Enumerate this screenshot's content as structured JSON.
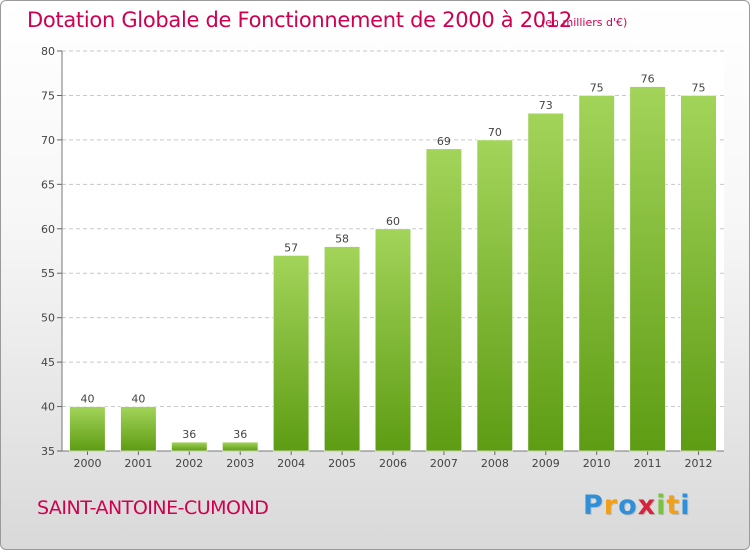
{
  "header": {
    "title": "Dotation Globale de Fonctionnement de 2000 à 2012",
    "unit": "(en milliers d'€)"
  },
  "footer": {
    "commune": "SAINT-ANTOINE-CUMOND",
    "logo_letters": [
      "P",
      "r",
      "o",
      "x",
      "i",
      "t",
      "i"
    ]
  },
  "colors": {
    "title": "#d0004f",
    "bar_top": "#a3d45a",
    "bar_bottom": "#5e9c14"
  },
  "chart_data": {
    "type": "bar",
    "title": "Dotation Globale de Fonctionnement de 2000 à 2012",
    "xlabel": "",
    "ylabel": "",
    "categories": [
      "2000",
      "2001",
      "2002",
      "2003",
      "2004",
      "2005",
      "2006",
      "2007",
      "2008",
      "2009",
      "2010",
      "2011",
      "2012"
    ],
    "values": [
      40,
      40,
      36,
      36,
      57,
      58,
      60,
      69,
      70,
      73,
      75,
      76,
      75
    ],
    "ylim": [
      35,
      80
    ],
    "yticks": [
      35,
      40,
      45,
      50,
      55,
      60,
      65,
      70,
      75,
      80
    ],
    "grid": true
  }
}
